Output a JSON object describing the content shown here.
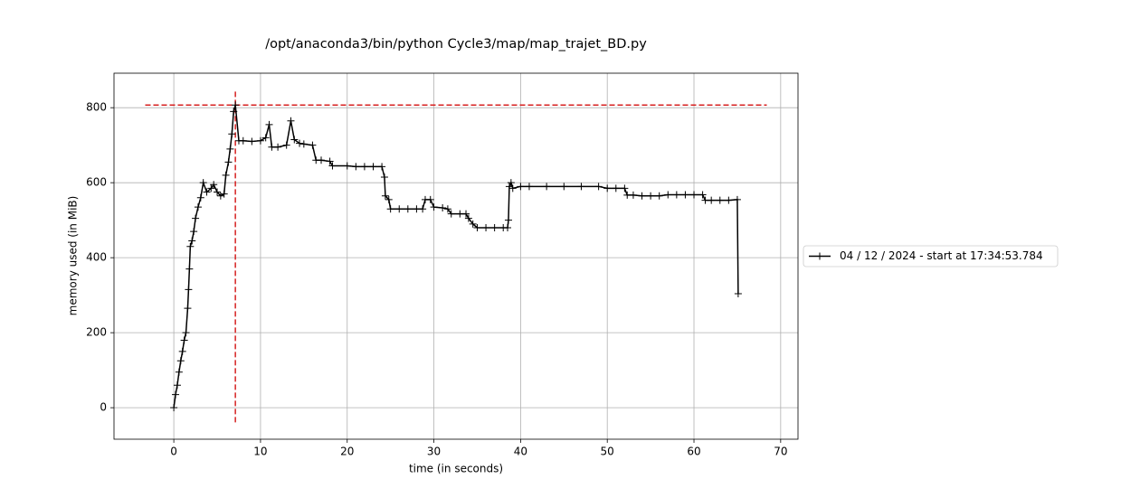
{
  "chart_data": {
    "type": "line",
    "title": "/opt/anaconda3/bin/python Cycle3/map/map_trajet_BD.py",
    "x_label": "time (in seconds)",
    "y_label": "memory used (in MiB)",
    "xlim": [
      -6.9,
      72
    ],
    "ylim": [
      -84,
      892
    ],
    "xticks": [
      0,
      10,
      20,
      30,
      40,
      50,
      60,
      70
    ],
    "yticks": [
      0,
      200,
      400,
      600,
      800
    ],
    "grid": true,
    "legend": "center left outside",
    "x": [
      0,
      0.2,
      0.4,
      0.6,
      0.8,
      1.0,
      1.2,
      1.4,
      1.6,
      1.7,
      1.8,
      1.9,
      2.1,
      2.3,
      2.5,
      2.8,
      3.1,
      3.4,
      3.8,
      4.3,
      4.6,
      5.0,
      5.4,
      5.8,
      6.0,
      6.3,
      6.5,
      6.7,
      6.9,
      7.1,
      7.5,
      8,
      9,
      10,
      10.6,
      11,
      11.3,
      12,
      13,
      13.5,
      13.9,
      14.5,
      15,
      16,
      16.4,
      17,
      18,
      18.3,
      20,
      21,
      22,
      23,
      24,
      24.3,
      24.4,
      24.8,
      25,
      26,
      27,
      28,
      28.7,
      29,
      29.6,
      30,
      31,
      31.6,
      32,
      33,
      33.7,
      34,
      34.5,
      35,
      36,
      37,
      38,
      38.5,
      38.6,
      38.7,
      38.9,
      39.1,
      40,
      41,
      43,
      45,
      47,
      49,
      50,
      51,
      52,
      52.3,
      53,
      54,
      55,
      56,
      57,
      58,
      59,
      60,
      61,
      61.3,
      62,
      63,
      64,
      65,
      65.1
    ],
    "series": [
      {
        "name": "04 / 12 / 2024 - start at 17:34:53.784",
        "color": "#000000",
        "values": [
          0,
          35,
          60,
          95,
          125,
          150,
          180,
          200,
          265,
          315,
          370,
          430,
          445,
          470,
          505,
          535,
          560,
          600,
          575,
          585,
          595,
          575,
          565,
          570,
          620,
          655,
          690,
          730,
          790,
          807,
          712,
          712,
          710,
          712,
          720,
          755,
          695,
          695,
          700,
          765,
          715,
          705,
          703,
          700,
          660,
          660,
          657,
          645,
          645,
          643,
          643,
          643,
          643,
          615,
          565,
          555,
          530,
          530,
          530,
          530,
          530,
          555,
          555,
          535,
          533,
          530,
          517,
          517,
          517,
          505,
          490,
          480,
          480,
          480,
          480,
          480,
          500,
          590,
          600,
          585,
          590,
          590,
          590,
          590,
          590,
          590,
          585,
          585,
          585,
          567,
          567,
          565,
          565,
          565,
          568,
          568,
          568,
          568,
          568,
          553,
          553,
          553,
          553,
          555,
          304
        ]
      }
    ],
    "reference_lines": [
      {
        "orientation": "h",
        "value": 807,
        "from": -3.3,
        "to": 68.4,
        "color": "#d62020"
      },
      {
        "orientation": "v",
        "value": 7.1,
        "from": -39,
        "to": 848,
        "color": "#d62020"
      }
    ]
  }
}
